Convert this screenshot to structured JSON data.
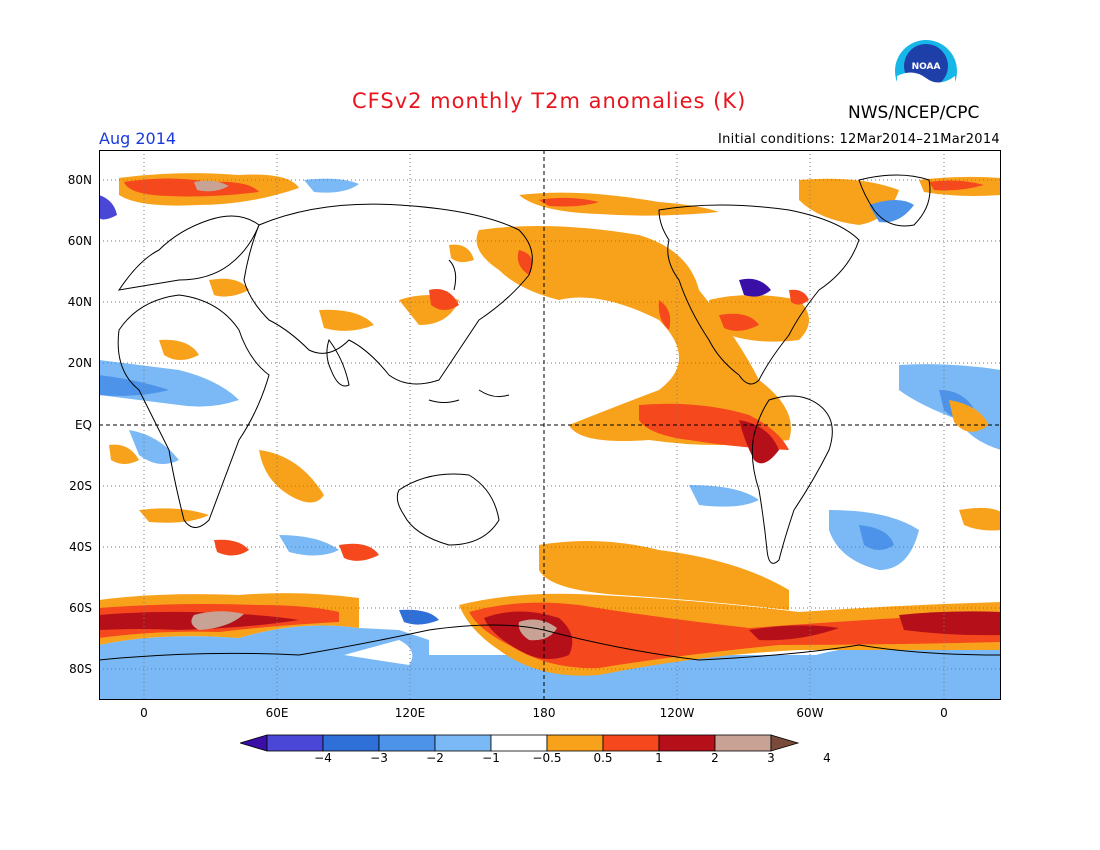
{
  "title": "CFSv2 monthly T2m anomalies (K)",
  "agency": "NWS/NCEP/CPC",
  "logo_text": "NOAA",
  "valid_month": "Aug 2014",
  "initial_conditions": "Initial conditions: 12Mar2014–21Mar2014",
  "lat_labels": [
    "80N",
    "60N",
    "40N",
    "20N",
    "EQ",
    "20S",
    "40S",
    "60S",
    "80S"
  ],
  "lon_labels": [
    "0",
    "60E",
    "120E",
    "180",
    "120W",
    "60W",
    "0"
  ],
  "colorbar": {
    "labels": [
      "−4",
      "−3",
      "−2",
      "−1",
      "−0.5",
      "0.5",
      "1",
      "2",
      "3",
      "4"
    ],
    "colors": [
      "#3a0fa8",
      "#4b47d6",
      "#2f6fd8",
      "#4d93ea",
      "#7ab9f5",
      "#ffffff",
      "#f8a21c",
      "#f5481c",
      "#b5101a",
      "#c8a294",
      "#7a4a3a"
    ]
  },
  "colors": {
    "title": "#e8141e",
    "month": "#1a3ad8"
  }
}
